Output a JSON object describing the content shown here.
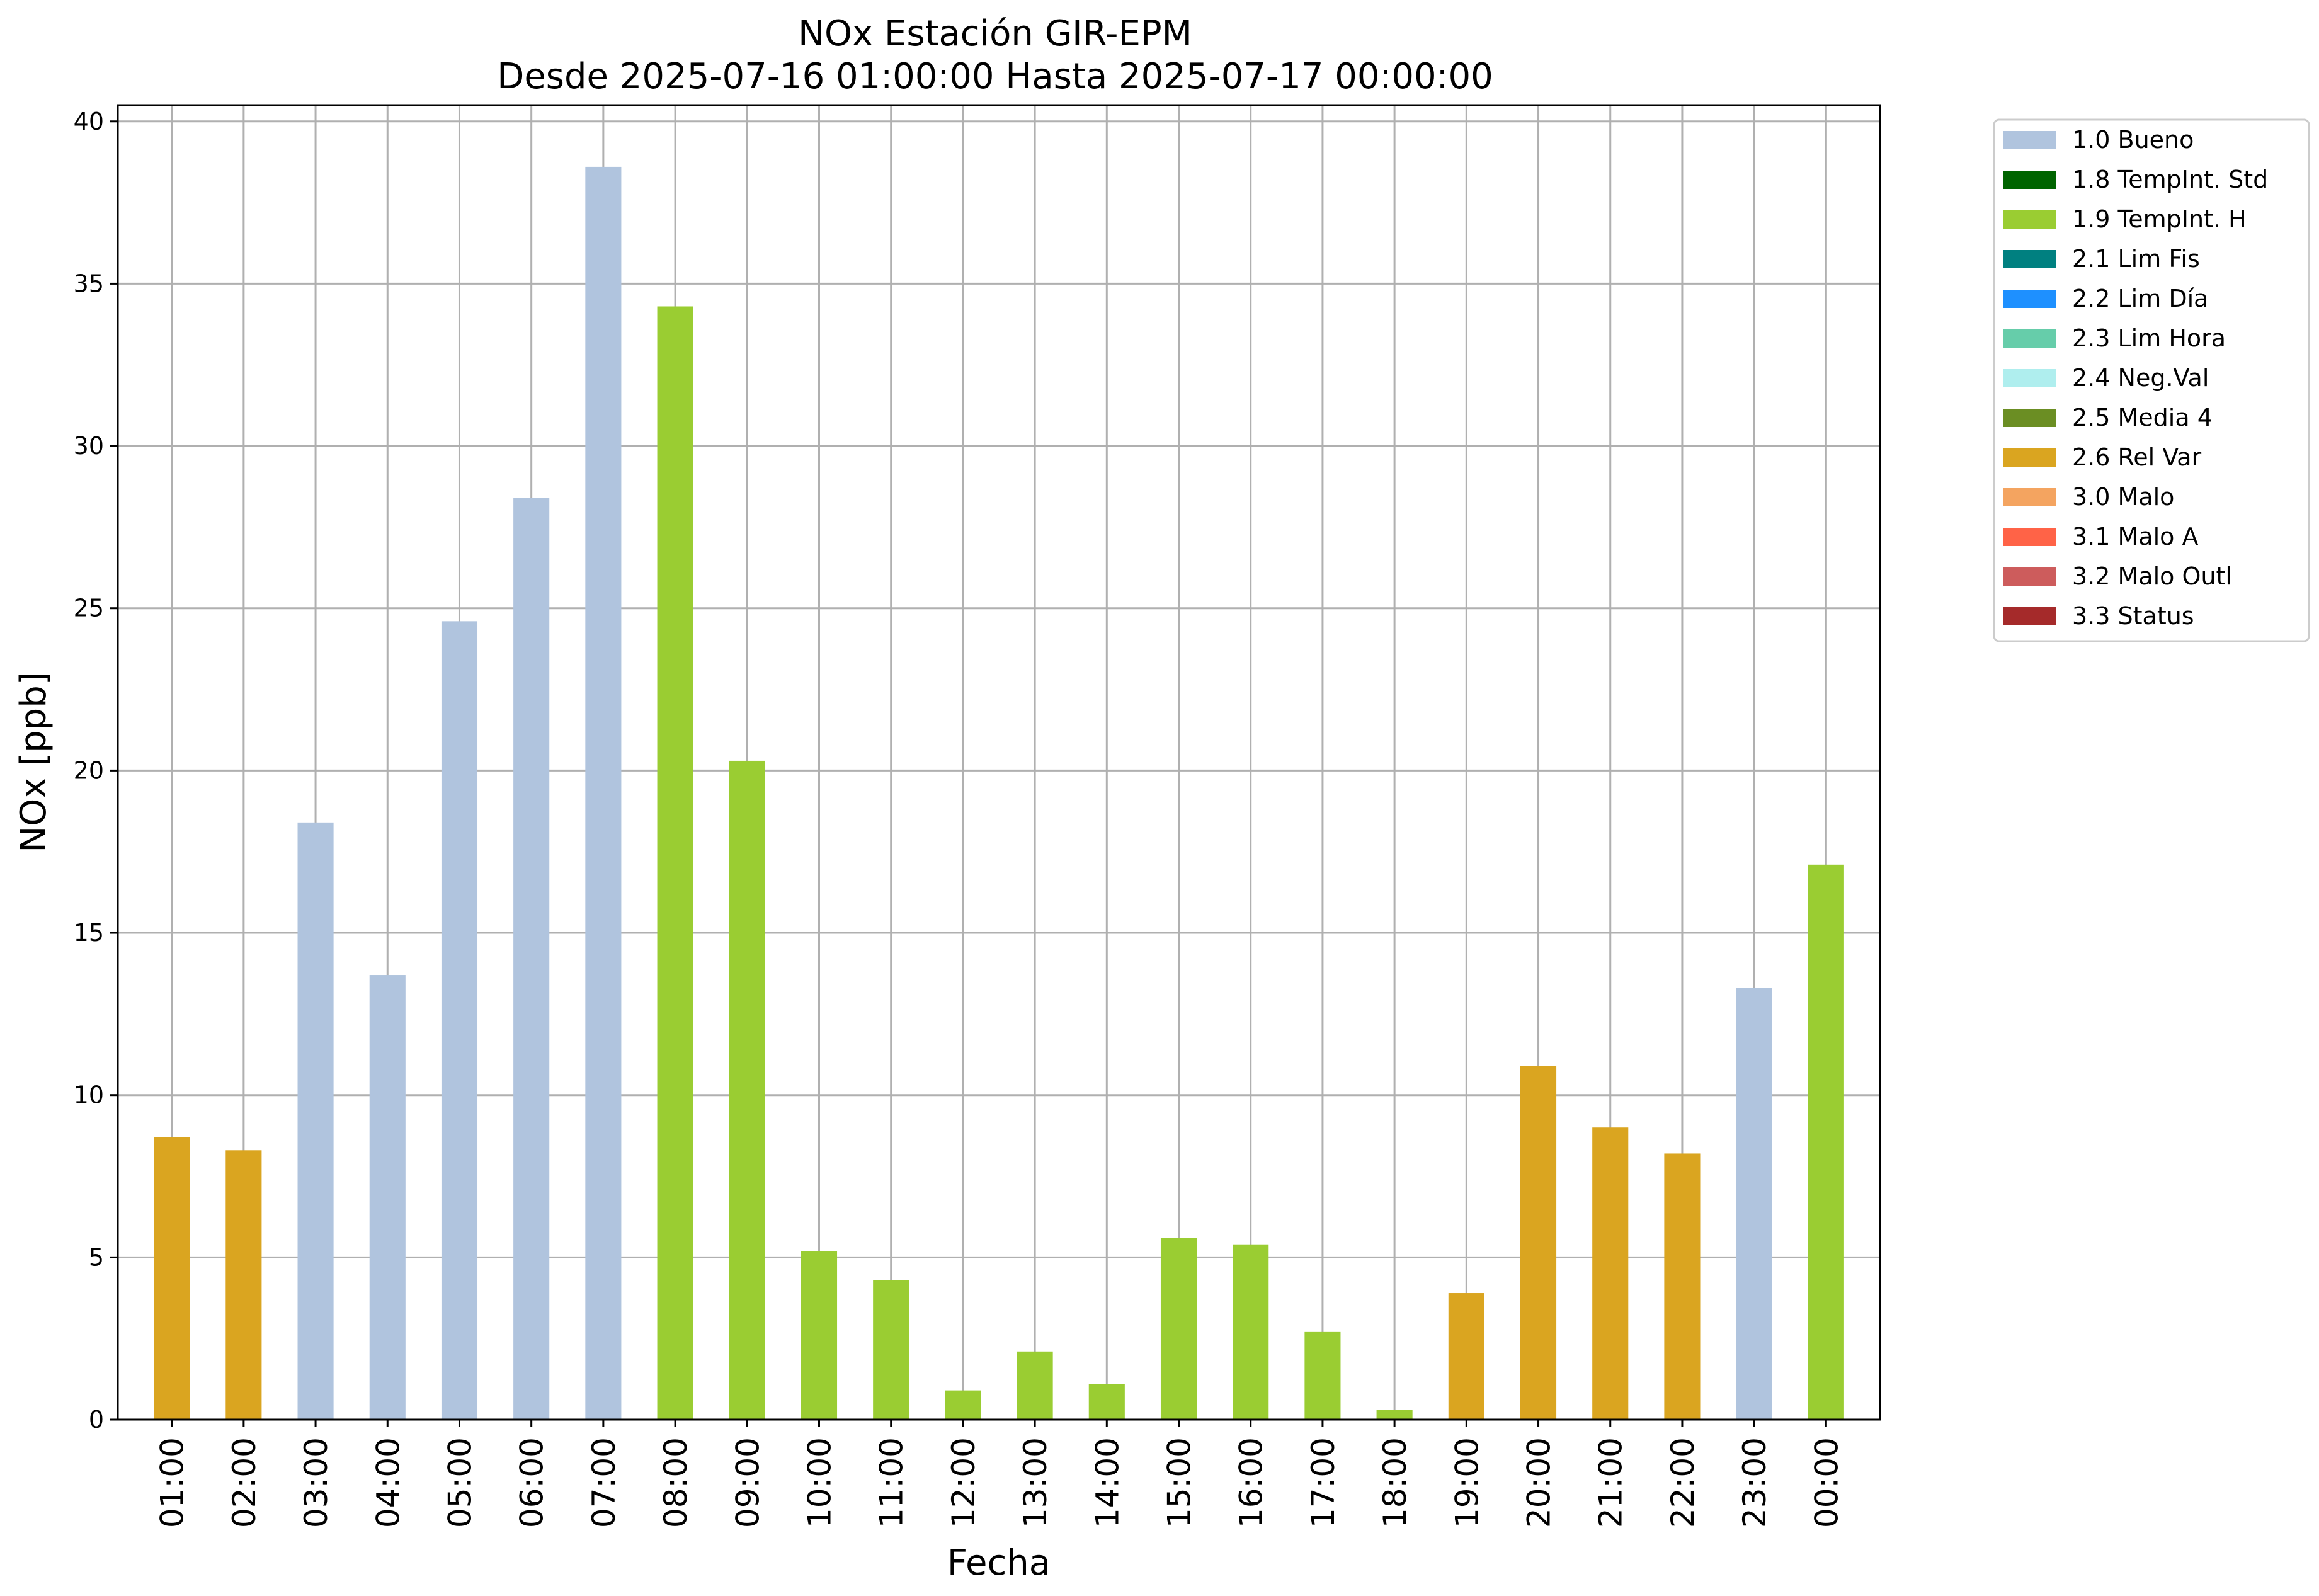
{
  "chart_data": {
    "type": "bar",
    "title": "NOx Estación GIR-EPM",
    "subtitle": "Desde 2025-07-16 01:00:00 Hasta 2025-07-17 00:00:00",
    "xlabel": "Fecha",
    "ylabel": "NOx [ppb]",
    "ylim": [
      0,
      40.5
    ],
    "yticks": [
      0,
      5,
      10,
      15,
      20,
      25,
      30,
      35,
      40
    ],
    "grid": true,
    "legend_position": "outside-top-right",
    "categories": [
      "01:00",
      "02:00",
      "03:00",
      "04:00",
      "05:00",
      "06:00",
      "07:00",
      "08:00",
      "09:00",
      "10:00",
      "11:00",
      "12:00",
      "13:00",
      "14:00",
      "15:00",
      "16:00",
      "17:00",
      "18:00",
      "19:00",
      "20:00",
      "21:00",
      "22:00",
      "23:00",
      "00:00"
    ],
    "values": [
      8.7,
      8.3,
      18.4,
      13.7,
      24.6,
      28.4,
      38.6,
      34.3,
      20.3,
      5.2,
      4.3,
      0.9,
      2.1,
      1.1,
      5.6,
      5.4,
      2.7,
      0.3,
      3.9,
      10.9,
      9.0,
      8.2,
      13.3,
      17.1
    ],
    "flags": [
      "2.6 Rel Var",
      "2.6 Rel Var",
      "1.0 Bueno",
      "1.0 Bueno",
      "1.0 Bueno",
      "1.0 Bueno",
      "1.0 Bueno",
      "1.9 TempInt. H",
      "1.9 TempInt. H",
      "1.9 TempInt. H",
      "1.9 TempInt. H",
      "1.9 TempInt. H",
      "1.9 TempInt. H",
      "1.9 TempInt. H",
      "1.9 TempInt. H",
      "1.9 TempInt. H",
      "1.9 TempInt. H",
      "1.9 TempInt. H",
      "2.6 Rel Var",
      "2.6 Rel Var",
      "2.6 Rel Var",
      "2.6 Rel Var",
      "1.0 Bueno",
      "1.9 TempInt. H"
    ],
    "legend": [
      {
        "label": "1.0 Bueno",
        "color": "#b0c4de"
      },
      {
        "label": "1.8 TempInt. Std",
        "color": "#006400"
      },
      {
        "label": "1.9 TempInt. H",
        "color": "#9acd32"
      },
      {
        "label": "2.1 Lim Fis",
        "color": "#008080"
      },
      {
        "label": "2.2 Lim Día",
        "color": "#1e90ff"
      },
      {
        "label": "2.3 Lim Hora",
        "color": "#66cdaa"
      },
      {
        "label": "2.4 Neg.Val",
        "color": "#afeeee"
      },
      {
        "label": "2.5 Media 4",
        "color": "#6b8e23"
      },
      {
        "label": "2.6 Rel Var",
        "color": "#daa520"
      },
      {
        "label": "3.0 Malo",
        "color": "#f4a460"
      },
      {
        "label": "3.1 Malo A",
        "color": "#ff6347"
      },
      {
        "label": "3.2 Malo Outl",
        "color": "#cd5c5c"
      },
      {
        "label": "3.3 Status",
        "color": "#a52a2a"
      }
    ]
  }
}
